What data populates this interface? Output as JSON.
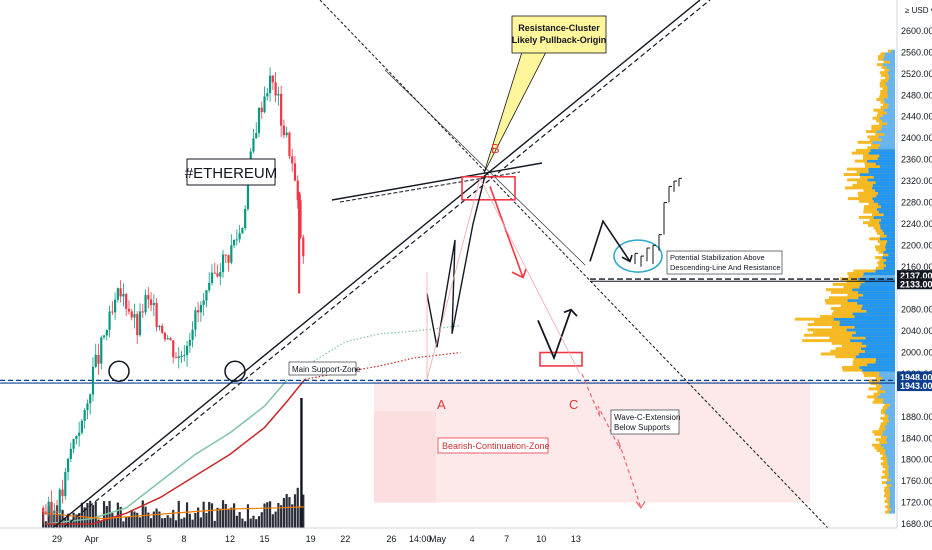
{
  "chart_data": {
    "type": "candlestick",
    "title": "#ETHEREUM",
    "currency_label": "≥ USD ▾",
    "y_axis": {
      "min": 1670,
      "max": 2680,
      "ticks": [
        2600,
        2560,
        2520,
        2480,
        2440,
        2400,
        2360,
        2320,
        2280,
        2240,
        2200,
        2160,
        2080,
        2040,
        2000,
        1960,
        1880,
        1840,
        1800,
        1760,
        1720,
        1680
      ],
      "tick_labels": [
        "2600.00",
        "2560.00",
        "2520.00",
        "2480.00",
        "2440.00",
        "2400.00",
        "2360.00",
        "2320.00",
        "2280.00",
        "2240.00",
        "2200.00",
        "2160.00",
        "2080.00",
        "2040.00",
        "2000.00",
        "1960.00",
        "1880.00",
        "1840.00",
        "1800.00",
        "1760.00",
        "1720.00",
        "1680.00"
      ],
      "price_tags": [
        {
          "value": 2137,
          "label": "2137.00",
          "color": "#131722"
        },
        {
          "value": 2133,
          "label": "2133.00",
          "color": "#131722"
        },
        {
          "value": 1948,
          "label": "1948.00",
          "color": "#0c3d8f"
        },
        {
          "value": 1943,
          "label": "1943.00",
          "color": "#0c3d8f"
        }
      ]
    },
    "x_axis": {
      "day_start": -2,
      "day_end": 44,
      "ticks": [
        {
          "day": 0,
          "label": "29"
        },
        {
          "day": 3,
          "label": "Apr"
        },
        {
          "day": 8,
          "label": "5"
        },
        {
          "day": 11,
          "label": "8"
        },
        {
          "day": 15,
          "label": "12"
        },
        {
          "day": 18,
          "label": "15"
        },
        {
          "day": 22,
          "label": "19"
        },
        {
          "day": 25,
          "label": "22"
        },
        {
          "day": 29,
          "label": "26"
        },
        {
          "day": 31.5,
          "label": "14:00"
        },
        {
          "day": 33,
          "label": "May"
        },
        {
          "day": 36,
          "label": "4"
        },
        {
          "day": 39,
          "label": "7"
        },
        {
          "day": 42,
          "label": "10"
        },
        {
          "day": 45,
          "label": "13"
        }
      ]
    },
    "annotations": {
      "resistance_callout": [
        "Resistance-Cluster",
        "Likely Pullback-Origin"
      ],
      "main_support": "Main Support-Zone",
      "bearish_zone": "Bearish-Continuation-Zone",
      "wave_c": [
        "Wave-C-Extension",
        "Below Supports"
      ],
      "stabilization": [
        "Potential Stabilization Above",
        "Descending-Line And Resistance"
      ],
      "wave_labels": [
        "A",
        "B",
        "C"
      ]
    },
    "colors": {
      "up": "#089981",
      "down": "#f23645",
      "support_line": "#0c3d8f",
      "ma_green": "#7fc4a3",
      "ma_red": "#c62828",
      "zone_fill": "#fde9ea",
      "profile_orange": "#f6b923",
      "profile_blue": "#2196f3"
    }
  }
}
